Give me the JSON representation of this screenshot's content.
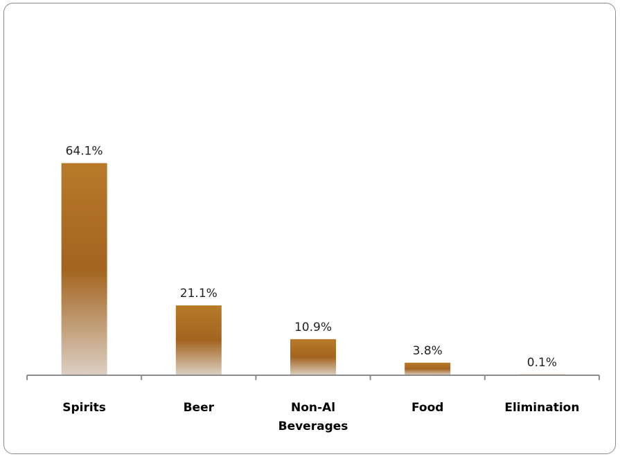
{
  "chart_data": {
    "type": "bar",
    "categories": [
      [
        "Spirits"
      ],
      [
        "Beer"
      ],
      [
        "Non-Al",
        "Beverages"
      ],
      [
        "Food"
      ],
      [
        "Elimination"
      ]
    ],
    "values": [
      64.1,
      21.1,
      10.9,
      3.8,
      0.1
    ],
    "data_labels": [
      "64.1%",
      "21.1%",
      "10.9%",
      "3.8%",
      "0.1%"
    ],
    "ylim": [
      0,
      100
    ],
    "grid": false,
    "legend": "none",
    "colors": {
      "bar_top": "#b87a2a",
      "bar_mid": "#a3641f",
      "bar_bottom": "#dcd0c4",
      "axis": "#8c8c8c"
    }
  }
}
